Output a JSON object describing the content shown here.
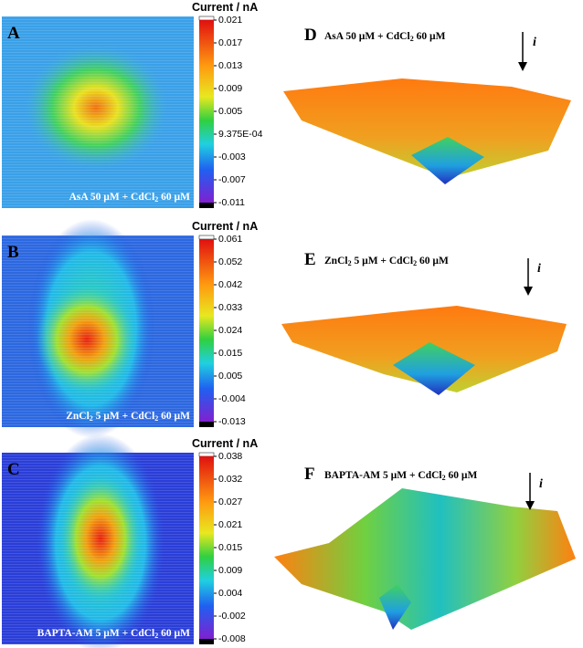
{
  "panels": [
    {
      "letter": "A",
      "title": "Current / nA",
      "ticks": [
        "0.021",
        "0.017",
        "0.013",
        "0.009",
        "0.005",
        "9.375E-04",
        "-0.003",
        "-0.007",
        "-0.011"
      ],
      "caption": [
        "AsA 50 µM + CdCl",
        "2",
        " 60 µM"
      ]
    },
    {
      "letter": "B",
      "title": "Current / nA",
      "ticks": [
        "0.061",
        "0.052",
        "0.042",
        "0.033",
        "0.024",
        "0.015",
        "0.005",
        "-0.004",
        "-0.013"
      ],
      "caption": [
        "ZnCl",
        "2",
        " 5 µM + CdCl",
        "2",
        " 60 µM"
      ]
    },
    {
      "letter": "C",
      "title": "Current / nA",
      "ticks": [
        "0.038",
        "0.032",
        "0.027",
        "0.021",
        "0.015",
        "0.009",
        "0.004",
        "-0.002",
        "-0.008"
      ],
      "caption": [
        "BAPTA-AM 5 µM + CdCl",
        "2",
        " 60 µM"
      ]
    }
  ],
  "surfaces": [
    {
      "letter": "D",
      "caption": [
        "AsA 50 µM + CdCl",
        "2",
        " 60 µM"
      ],
      "current": "i"
    },
    {
      "letter": "E",
      "caption": [
        "ZnCl",
        "2",
        " 5 µM + CdCl",
        "2",
        " 60 µM"
      ],
      "current": "i"
    },
    {
      "letter": "F",
      "caption": [
        "BAPTA-AM 5 µM + CdCl",
        "2",
        " 60 µM"
      ],
      "current": "i"
    }
  ]
}
